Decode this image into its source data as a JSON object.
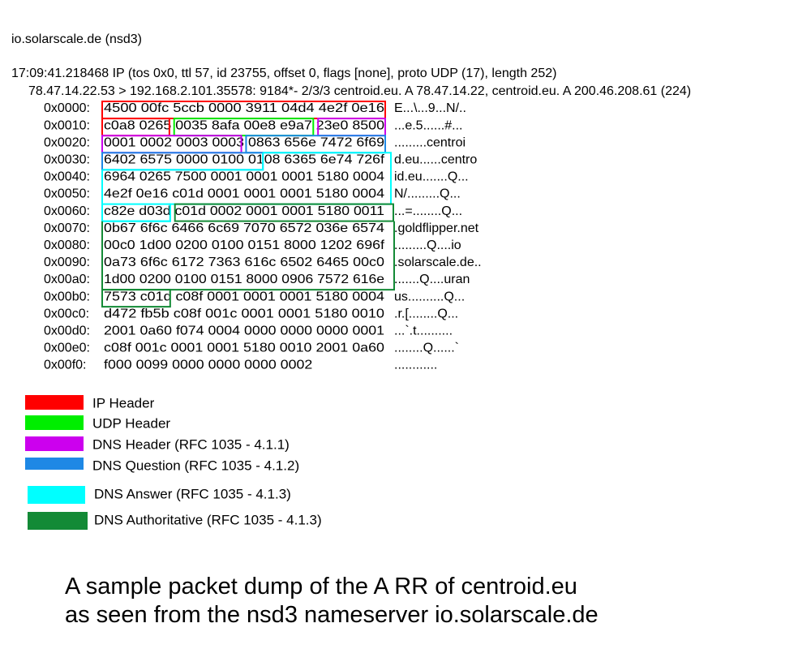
{
  "header": {
    "host": "io.solarscale.de (nsd3)",
    "summary": "17:09:41.218468 IP (tos 0x0, ttl 57, id 23755, offset 0, flags [none], proto UDP (17), length 252)",
    "query": "78.47.14.22.53 > 192.168.2.101.35578: 9184*- 2/3/3 centroid.eu. A 78.47.14.22, centroid.eu. A 200.46.208.61 (224)"
  },
  "dump": [
    {
      "offset": "0x0000:",
      "hex": "4500 00fc 5ccb 0000 3911 04d4 4e2f 0e16",
      "ascii": "E...\\...9...N/.."
    },
    {
      "offset": "0x0010:",
      "hex": "c0a8 0265 0035 8afa 00e8 e9a7 23e0 8500",
      "ascii": "...e.5......#..."
    },
    {
      "offset": "0x0020:",
      "hex": "0001 0002 0003 0003 0863 656e 7472 6f69",
      "ascii": ".........centroi"
    },
    {
      "offset": "0x0030:",
      "hex": "6402 6575 0000 0100 0108 6365 6e74 726f",
      "ascii": "d.eu......centro"
    },
    {
      "offset": "0x0040:",
      "hex": "6964 0265 7500 0001 0001 0001 5180 0004",
      "ascii": "id.eu.......Q..."
    },
    {
      "offset": "0x0050:",
      "hex": "4e2f 0e16 c01d 0001 0001 0001 5180 0004",
      "ascii": "N/.........Q..."
    },
    {
      "offset": "0x0060:",
      "hex": "c82e d03d c01d 0002 0001 0001 5180 0011",
      "ascii": "...=........Q..."
    },
    {
      "offset": "0x0070:",
      "hex": "0b67 6f6c 6466 6c69 7070 6572 036e 6574",
      "ascii": ".goldflipper.net"
    },
    {
      "offset": "0x0080:",
      "hex": "00c0 1d00 0200 0100 0151 8000 1202 696f",
      "ascii": ".........Q....io"
    },
    {
      "offset": "0x0090:",
      "hex": "0a73 6f6c 6172 7363 616c 6502 6465 00c0",
      "ascii": ".solarscale.de.."
    },
    {
      "offset": "0x00a0:",
      "hex": "1d00 0200 0100 0151 8000 0906 7572 616e",
      "ascii": ".......Q....uran"
    },
    {
      "offset": "0x00b0:",
      "hex": "7573 c01d c08f 0001 0001 0001 5180 0004",
      "ascii": "us..........Q..."
    },
    {
      "offset": "0x00c0:",
      "hex": "d472 fb5b c08f 001c 0001 0001 5180 0010",
      "ascii": ".r.[........Q..."
    },
    {
      "offset": "0x00d0:",
      "hex": "2001 0a60 f074 0004 0000 0000 0000 0001",
      "ascii": "...`.t.........."
    },
    {
      "offset": "0x00e0:",
      "hex": "c08f 001c 0001 0001 5180 0010 2001 0a60",
      "ascii": "........Q......`"
    },
    {
      "offset": "0x00f0:",
      "hex": "f000 0099 0000 0000 0000 0002",
      "ascii": "............"
    }
  ],
  "legend": [
    {
      "label": "IP Header",
      "color": "#ff0000"
    },
    {
      "label": "UDP Header",
      "color": "#00ee00"
    },
    {
      "label": "DNS Header (RFC 1035 - 4.1.1)",
      "color": "#cc00ee"
    },
    {
      "label": "DNS Question (RFC 1035 - 4.1.2)",
      "color": "#1e88e5"
    },
    {
      "label": "DNS Answer (RFC 1035 - 4.1.3)",
      "color": "#00ffff"
    },
    {
      "label": "DNS Authoritative (RFC 1035 - 4.1.3)",
      "color": "#138a36"
    }
  ],
  "caption": {
    "line1": "A sample packet dump of the A RR of centroid.eu",
    "line2": "as seen from the nsd3 nameserver io.solarscale.de"
  }
}
